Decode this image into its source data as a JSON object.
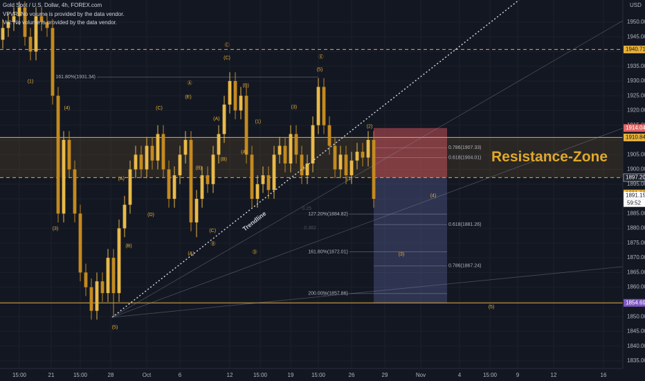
{
  "chart_data": {
    "type": "candlestick",
    "title": "Gold Spot / U.S. Dollar, 4h, FOREX.com",
    "subtitles": [
      "VPVR: No volume is provided by the data vendor.",
      "Vol: No volume is provided by the data vendor."
    ],
    "y_axis_label": "USD",
    "xlim": [
      -0.5,
      112
    ],
    "ylim": [
      1832.4,
      1957.5
    ],
    "xticks": [
      {
        "value": 3,
        "label": "15:00"
      },
      {
        "value": 8.75,
        "label": "21"
      },
      {
        "value": 14,
        "label": "15:00"
      },
      {
        "value": 19.5,
        "label": "28"
      },
      {
        "value": 26,
        "label": "Oct"
      },
      {
        "value": 32,
        "label": "6"
      },
      {
        "value": 41,
        "label": "12"
      },
      {
        "value": 46.5,
        "label": "15:00"
      },
      {
        "value": 52,
        "label": "19"
      },
      {
        "value": 57,
        "label": "15:00"
      },
      {
        "value": 63,
        "label": "26"
      },
      {
        "value": 69,
        "label": "29"
      },
      {
        "value": 75.5,
        "label": "Nov"
      },
      {
        "value": 82.5,
        "label": "4"
      },
      {
        "value": 88,
        "label": "15:00"
      },
      {
        "value": 93,
        "label": "9"
      },
      {
        "value": 99.5,
        "label": "12"
      },
      {
        "value": 108.5,
        "label": "16"
      }
    ],
    "yticks": [
      {
        "value": 1835,
        "label": "1835.00"
      },
      {
        "value": 1840,
        "label": "1840.00"
      },
      {
        "value": 1845,
        "label": "1845.00"
      },
      {
        "value": 1850,
        "label": "1850.00"
      },
      {
        "value": 1855,
        "label": "1855.00"
      },
      {
        "value": 1860,
        "label": "1860.00"
      },
      {
        "value": 1865,
        "label": "1865.00"
      },
      {
        "value": 1870,
        "label": "1870.00"
      },
      {
        "value": 1875,
        "label": "1875.00"
      },
      {
        "value": 1880,
        "label": "1880.00"
      },
      {
        "value": 1885,
        "label": "1885.00"
      },
      {
        "value": 1890,
        "label": "1890.00"
      },
      {
        "value": 1895,
        "label": "1895.00"
      },
      {
        "value": 1900,
        "label": "1900.00"
      },
      {
        "value": 1905,
        "label": "1905.00"
      },
      {
        "value": 1910,
        "label": "1910.00"
      },
      {
        "value": 1915,
        "label": "1915.00"
      },
      {
        "value": 1920,
        "label": "1920.00"
      },
      {
        "value": 1925,
        "label": "1925.00"
      },
      {
        "value": 1930,
        "label": "1930.00"
      },
      {
        "value": 1935,
        "label": "1935.00"
      },
      {
        "value": 1940,
        "label": "1940.00"
      },
      {
        "value": 1945,
        "label": "1945.00"
      },
      {
        "value": 1950,
        "label": "1950.00"
      }
    ],
    "up_color": "#e9b949",
    "down_color": "#c48a1f",
    "open": [
      1944,
      1948,
      1950,
      1952,
      1955,
      1945,
      1940,
      1952,
      1950,
      1948,
      1925,
      1885,
      1910,
      1900,
      1885,
      1865,
      1860,
      1852,
      1862,
      1858,
      1870,
      1858,
      1880,
      1888,
      1900,
      1905,
      1900,
      1908,
      1903,
      1912,
      1900,
      1890,
      1898,
      1905,
      1910,
      1882,
      1890,
      1898,
      1895,
      1905,
      1912,
      1922,
      1930,
      1920,
      1925,
      1905,
      1890,
      1895,
      1898,
      1893,
      1905,
      1908,
      1902,
      1912,
      1905,
      1898,
      1902,
      1915,
      1928,
      1915,
      1908,
      1900,
      1905,
      1898,
      1903,
      1906,
      1904,
      1910
    ],
    "high": [
      1951,
      1953,
      1955,
      1957,
      1957,
      1948,
      1955,
      1955,
      1953,
      1951,
      1928,
      1913,
      1913,
      1903,
      1888,
      1868,
      1863,
      1865,
      1865,
      1873,
      1873,
      1883,
      1891,
      1903,
      1908,
      1908,
      1911,
      1911,
      1915,
      1915,
      1903,
      1901,
      1908,
      1913,
      1913,
      1893,
      1901,
      1901,
      1908,
      1915,
      1925,
      1933,
      1933,
      1928,
      1928,
      1908,
      1898,
      1901,
      1901,
      1908,
      1911,
      1911,
      1915,
      1915,
      1908,
      1905,
      1918,
      1931,
      1931,
      1918,
      1911,
      1908,
      1908,
      1906,
      1909,
      1909,
      1913,
      1913
    ],
    "low": [
      1941,
      1945,
      1947,
      1949,
      1942,
      1937,
      1937,
      1947,
      1945,
      1922,
      1882,
      1882,
      1897,
      1882,
      1862,
      1857,
      1849,
      1849,
      1855,
      1855,
      1850,
      1855,
      1877,
      1885,
      1897,
      1897,
      1897,
      1900,
      1900,
      1897,
      1887,
      1887,
      1895,
      1902,
      1879,
      1877,
      1887,
      1892,
      1892,
      1902,
      1909,
      1919,
      1917,
      1917,
      1902,
      1887,
      1887,
      1892,
      1890,
      1890,
      1902,
      1899,
      1899,
      1902,
      1895,
      1895,
      1899,
      1912,
      1912,
      1905,
      1897,
      1897,
      1895,
      1895,
      1900,
      1901,
      1901,
      1887
    ],
    "close": [
      1948,
      1950,
      1952,
      1955,
      1945,
      1940,
      1952,
      1950,
      1948,
      1925,
      1885,
      1910,
      1900,
      1885,
      1865,
      1860,
      1852,
      1862,
      1858,
      1870,
      1858,
      1880,
      1888,
      1900,
      1905,
      1900,
      1908,
      1903,
      1912,
      1900,
      1890,
      1898,
      1905,
      1910,
      1882,
      1890,
      1898,
      1895,
      1905,
      1912,
      1922,
      1930,
      1920,
      1925,
      1905,
      1890,
      1895,
      1898,
      1893,
      1905,
      1908,
      1902,
      1912,
      1905,
      1898,
      1902,
      1915,
      1928,
      1915,
      1908,
      1900,
      1905,
      1898,
      1903,
      1906,
      1904,
      1910,
      1890
    ],
    "zone": {
      "label": "Resistance-Zone",
      "top": 1910.84,
      "bottom": 1897.22
    },
    "levels": [
      {
        "value": 1940.71,
        "style": "dashed"
      },
      {
        "value": 1910.84,
        "style": "solid"
      },
      {
        "value": 1897.22,
        "style": "dashed"
      },
      {
        "value": 1854.69,
        "style": "solid"
      }
    ],
    "position": {
      "x0": 67,
      "x1": 80.25,
      "stop": 1914.04,
      "entry": 1897.22,
      "target": 1854.69
    },
    "fib_levels": [
      {
        "label": "161.80%(1931.34)",
        "value": 1931.34,
        "x0": 17,
        "x1": 57
      },
      {
        "label": "0.786(1907.33)",
        "value": 1907.33,
        "x0": 67,
        "x1": 80.25
      },
      {
        "label": "0.618(1904.01)",
        "value": 1904.01,
        "x0": 67,
        "x1": 80.25
      },
      {
        "label": "127.20%(1884.82)",
        "value": 1884.82,
        "x0": 62.6,
        "x1": 80.25
      },
      {
        "label": "0.618(1881.26)",
        "value": 1881.26,
        "x0": 67,
        "x1": 80.25
      },
      {
        "label": "161.80%(1872.01)",
        "value": 1872.01,
        "x0": 62.6,
        "x1": 80.25
      },
      {
        "label": "0.786(1867.24)",
        "value": 1867.24,
        "x0": 67,
        "x1": 80.25
      },
      {
        "label": "200.00%(1857.86)",
        "value": 1857.86,
        "x0": 62.6,
        "x1": 80.25
      }
    ],
    "lines": [
      {
        "x0": 19.75,
        "y0": 1849.8,
        "x1": 93.25,
        "y1": 1957.5,
        "style": "dotted"
      },
      {
        "x0": 19.75,
        "y0": 1849.8,
        "x1": 112,
        "y1": 1950.5,
        "style": "faint"
      },
      {
        "x0": 19.75,
        "y0": 1849.8,
        "x1": 112,
        "y1": 1914,
        "style": "faint"
      },
      {
        "x0": 19.75,
        "y0": 1849.8,
        "x1": 112,
        "y1": 1867,
        "style": "faint"
      }
    ],
    "trendline_label": {
      "text": "Trendline",
      "x": 45.5,
      "y": 1882.3
    },
    "annotations": [
      {
        "text": "(1)",
        "x": 5,
        "y": 1929.8
      },
      {
        "text": "(3)",
        "x": 9.5,
        "y": 1879.9
      },
      {
        "text": "(4)",
        "x": 11.6,
        "y": 1920.8
      },
      {
        "text": "(5)",
        "x": 20.25,
        "y": 1846.3
      },
      {
        "text": "(A)",
        "x": 21.4,
        "y": 1896.8
      },
      {
        "text": "(B)",
        "x": 22.75,
        "y": 1874
      },
      {
        "text": "(C)",
        "x": 28.25,
        "y": 1920.8
      },
      {
        "text": "(D)",
        "x": 26.75,
        "y": 1884.6
      },
      {
        "text": "(E)",
        "x": 33.5,
        "y": 1924.6
      },
      {
        "text": "Ⓐ",
        "x": 33.75,
        "y": 1929.3
      },
      {
        "text": "(A)",
        "x": 34,
        "y": 1871.4
      },
      {
        "text": "Ⓑ",
        "x": 38,
        "y": 1874.7
      },
      {
        "text": "(B)",
        "x": 35.4,
        "y": 1900.4
      },
      {
        "text": "(C)",
        "x": 37.9,
        "y": 1879.2
      },
      {
        "text": "(A)",
        "x": 38.6,
        "y": 1917.1
      },
      {
        "text": "(B)",
        "x": 39.9,
        "y": 1903.4
      },
      {
        "text": "(C)",
        "x": 40.5,
        "y": 1937.8
      },
      {
        "text": "Ⓒ",
        "x": 40.5,
        "y": 1942.2
      },
      {
        "text": "(B)",
        "x": 43.9,
        "y": 1928.4
      },
      {
        "text": "(1)",
        "x": 46.1,
        "y": 1916.2
      },
      {
        "text": "(A)",
        "x": 43.6,
        "y": 1905.8
      },
      {
        "text": "Ⓓ",
        "x": 45.5,
        "y": 1871.9
      },
      {
        "text": "(3)",
        "x": 52.6,
        "y": 1921.1
      },
      {
        "text": "(4)",
        "x": 54.75,
        "y": 1900.4
      },
      {
        "text": "(5)",
        "x": 57.25,
        "y": 1933.8
      },
      {
        "text": "Ⓔ",
        "x": 57.5,
        "y": 1938.2
      },
      {
        "text": "(2)",
        "x": 66.25,
        "y": 1914.5
      },
      {
        "text": "(1)",
        "x": 62.6,
        "y": 1896.8
      },
      {
        "text": "(4)",
        "x": 77.75,
        "y": 1891
      },
      {
        "text": "(3)",
        "x": 72,
        "y": 1871.2
      },
      {
        "text": "(5)",
        "x": 88.25,
        "y": 1853.3
      }
    ],
    "faint_annotations": [
      {
        "text": "0.25",
        "x": 54.9,
        "y": 1886.7
      },
      {
        "text": "0.382",
        "x": 55.5,
        "y": 1880.1
      },
      {
        "text": "0/1",
        "x": 58.4,
        "y": 1857.4
      }
    ],
    "price_tags": [
      {
        "value": 1940.71,
        "color": "#e8b23a"
      },
      {
        "value": 1914.04,
        "color": "#e06666"
      },
      {
        "value": 1910.84,
        "color": "#e8b23a"
      },
      {
        "value": 1897.22,
        "color": "#e8b23a"
      },
      {
        "value": 1897.2,
        "label": "1897.20",
        "color": "#1e222d"
      },
      {
        "value": 1891.82,
        "color": "#e8b23a"
      },
      {
        "value": 1891.15,
        "color": "#ffffff"
      },
      {
        "value": 1854.69,
        "color": "#7e57c2"
      }
    ],
    "countdown": "59:52"
  }
}
